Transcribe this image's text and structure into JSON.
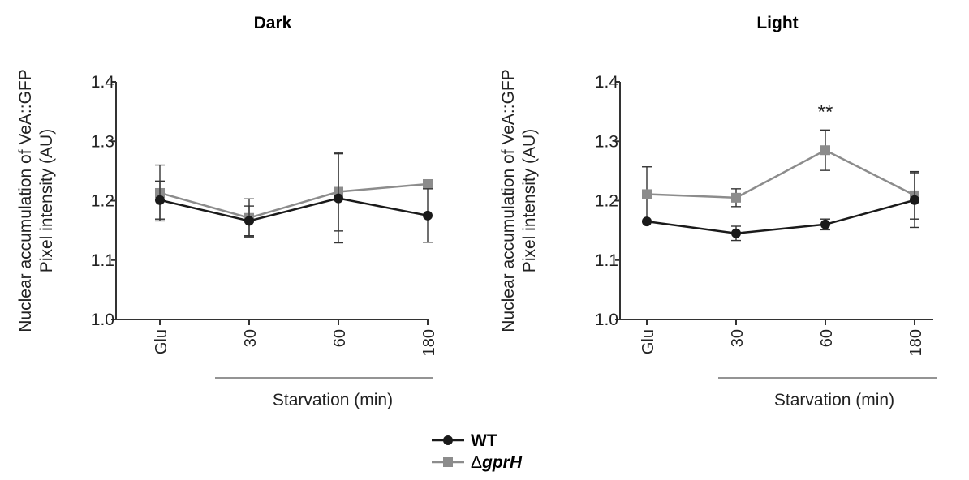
{
  "colors": {
    "WT": "#1a1a1a",
    "ΔgprH": "#8c8c8c",
    "axis": "#333333"
  },
  "legend": {
    "entries": [
      {
        "series": "WT",
        "prefix": "",
        "label": "WT",
        "italic": false,
        "marker": "circle"
      },
      {
        "series": "ΔgprH",
        "prefix": "Δ",
        "label": "gprH",
        "italic": true,
        "marker": "square"
      }
    ]
  },
  "chart_data": [
    {
      "type": "line",
      "title": "Dark",
      "ylabel_line1": "Nuclear accumulation of VeA::GFP",
      "ylabel_line2": "Pixel intensity (AU)",
      "xgroup_label": "Starvation (min)",
      "categories": [
        "Glu",
        "30",
        "60",
        "180"
      ],
      "ylim": [
        1.0,
        1.4
      ],
      "yticks": [
        "1.0",
        "1.1",
        "1.2",
        "1.3",
        "1.4"
      ],
      "grid": false,
      "annotations": [],
      "series": [
        {
          "name": "WT",
          "values": [
            1.201,
            1.166,
            1.204,
            1.175
          ],
          "error": [
            0.032,
            0.025,
            0.075,
            0.045
          ]
        },
        {
          "name": "ΔgprH",
          "values": [
            1.213,
            1.171,
            1.215,
            1.228
          ],
          "error": [
            0.047,
            0.032,
            0.066,
            0.0
          ]
        }
      ]
    },
    {
      "type": "line",
      "title": "Light",
      "ylabel_line1": "Nuclear accumulation of VeA::GFP",
      "ylabel_line2": "Pixel intensity (AU)",
      "xgroup_label": "Starvation (min)",
      "categories": [
        "Glu",
        "30",
        "60",
        "180"
      ],
      "ylim": [
        1.0,
        1.4
      ],
      "yticks": [
        "1.0",
        "1.1",
        "1.2",
        "1.3",
        "1.4"
      ],
      "grid": false,
      "annotations": [
        {
          "text": "**",
          "category": "60"
        }
      ],
      "series": [
        {
          "name": "WT",
          "values": [
            1.165,
            1.145,
            1.16,
            1.201
          ],
          "error": [
            0.0,
            0.012,
            0.009,
            0.046
          ]
        },
        {
          "name": "ΔgprH",
          "values": [
            1.211,
            1.205,
            1.285,
            1.209
          ],
          "error": [
            0.046,
            0.015,
            0.034,
            0.04
          ]
        }
      ]
    }
  ]
}
